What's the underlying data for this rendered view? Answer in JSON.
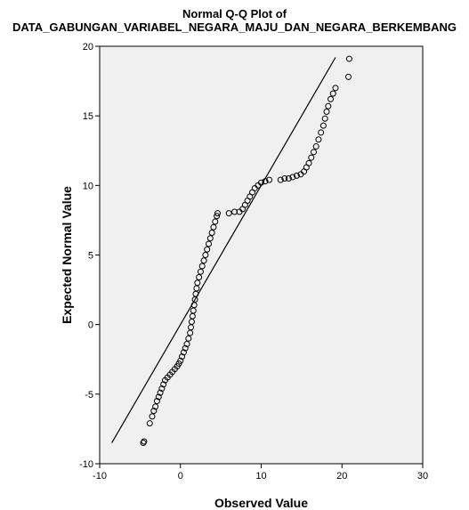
{
  "chart_data": {
    "type": "scatter",
    "title_lines": [
      "Normal Q-Q Plot of",
      "DATA_GABUNGAN_VARIABEL_NEGARA_MAJU_DAN_NEGARA_BERKEMBANG"
    ],
    "xlabel": "Observed Value",
    "ylabel": "Expected Normal Value",
    "xlim": [
      -10,
      30
    ],
    "ylim": [
      -10,
      20
    ],
    "x_ticks": [
      -10,
      0,
      10,
      20,
      30
    ],
    "y_ticks": [
      -10,
      -5,
      0,
      5,
      10,
      15,
      20
    ],
    "grid": false,
    "plot_background": "#f0f0f0",
    "marker": "hollow-circle",
    "reference_line": [
      [
        -8.5,
        -8.5
      ],
      [
        19.2,
        19.2
      ]
    ],
    "points": [
      [
        -4.6,
        -8.5
      ],
      [
        -4.5,
        -8.4
      ],
      [
        -3.8,
        -7.1
      ],
      [
        -3.5,
        -6.6
      ],
      [
        -3.3,
        -6.2
      ],
      [
        -3.1,
        -5.9
      ],
      [
        -2.9,
        -5.5
      ],
      [
        -2.7,
        -5.2
      ],
      [
        -2.5,
        -4.9
      ],
      [
        -2.3,
        -4.6
      ],
      [
        -2.1,
        -4.3
      ],
      [
        -1.9,
        -4.0
      ],
      [
        -1.6,
        -3.8
      ],
      [
        -1.3,
        -3.6
      ],
      [
        -1.0,
        -3.4
      ],
      [
        -0.7,
        -3.2
      ],
      [
        -0.4,
        -3.0
      ],
      [
        -0.2,
        -2.8
      ],
      [
        0.0,
        -2.6
      ],
      [
        0.2,
        -2.3
      ],
      [
        0.4,
        -2.0
      ],
      [
        0.6,
        -1.7
      ],
      [
        0.8,
        -1.4
      ],
      [
        1.0,
        -1.0
      ],
      [
        1.2,
        -0.6
      ],
      [
        1.3,
        -0.2
      ],
      [
        1.4,
        0.2
      ],
      [
        1.5,
        0.6
      ],
      [
        1.6,
        1.0
      ],
      [
        1.7,
        1.4
      ],
      [
        1.8,
        1.8
      ],
      [
        1.9,
        2.2
      ],
      [
        2.0,
        2.6
      ],
      [
        2.1,
        3.0
      ],
      [
        2.3,
        3.4
      ],
      [
        2.5,
        3.8
      ],
      [
        2.7,
        4.2
      ],
      [
        2.9,
        4.6
      ],
      [
        3.1,
        5.0
      ],
      [
        3.3,
        5.4
      ],
      [
        3.5,
        5.8
      ],
      [
        3.7,
        6.2
      ],
      [
        3.9,
        6.6
      ],
      [
        4.1,
        7.0
      ],
      [
        4.3,
        7.4
      ],
      [
        4.5,
        7.8
      ],
      [
        4.6,
        8.0
      ],
      [
        6.0,
        8.0
      ],
      [
        6.7,
        8.1
      ],
      [
        7.3,
        8.1
      ],
      [
        7.7,
        8.3
      ],
      [
        8.0,
        8.6
      ],
      [
        8.3,
        8.9
      ],
      [
        8.6,
        9.2
      ],
      [
        8.9,
        9.5
      ],
      [
        9.2,
        9.8
      ],
      [
        9.6,
        10.0
      ],
      [
        10.0,
        10.2
      ],
      [
        10.5,
        10.3
      ],
      [
        11.0,
        10.4
      ],
      [
        12.4,
        10.4
      ],
      [
        12.9,
        10.5
      ],
      [
        13.4,
        10.5
      ],
      [
        13.9,
        10.6
      ],
      [
        14.4,
        10.7
      ],
      [
        14.9,
        10.8
      ],
      [
        15.3,
        11.0
      ],
      [
        15.6,
        11.3
      ],
      [
        15.9,
        11.6
      ],
      [
        16.2,
        12.0
      ],
      [
        16.5,
        12.4
      ],
      [
        16.8,
        12.8
      ],
      [
        17.1,
        13.3
      ],
      [
        17.4,
        13.8
      ],
      [
        17.7,
        14.3
      ],
      [
        17.9,
        14.8
      ],
      [
        18.1,
        15.3
      ],
      [
        18.3,
        15.7
      ],
      [
        18.6,
        16.2
      ],
      [
        18.9,
        16.6
      ],
      [
        19.2,
        17.0
      ],
      [
        20.8,
        17.8
      ],
      [
        20.9,
        19.1
      ]
    ]
  }
}
